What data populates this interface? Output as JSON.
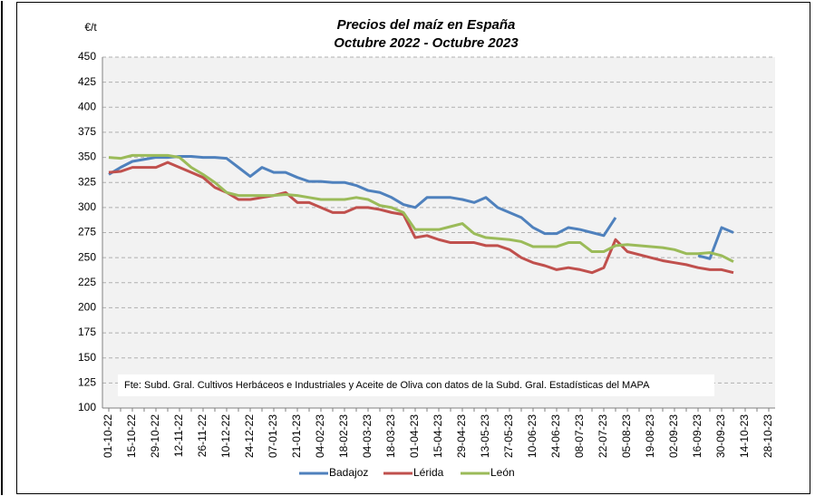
{
  "chart_data": {
    "type": "line",
    "title": "Precios del maíz en España",
    "subtitle": "Octubre 2022 - Octubre 2023",
    "y_label": "€/t",
    "annotation": "Fte: Subd. Gral. Cultivos Herbáceos e Industriales y Aceite de Oliva con datos de la Subd. Gral. Estadísticas del MAPA",
    "categories": [
      "01-10-22",
      null,
      "15-10-22",
      null,
      "29-10-22",
      null,
      "12-11-22",
      null,
      "26-11-22",
      null,
      "10-12-22",
      null,
      "24-12-22",
      null,
      "07-01-23",
      null,
      "21-01-23",
      null,
      "04-02-23",
      null,
      "18-02-23",
      null,
      "04-03-23",
      null,
      "18-03-23",
      null,
      "01-04-23",
      null,
      "15-04-23",
      null,
      "29-04-23",
      null,
      "13-05-23",
      null,
      "27-05-23",
      null,
      "10-06-23",
      null,
      "24-06-23",
      null,
      "08-07-23",
      null,
      "22-07-23",
      null,
      "05-08-23",
      null,
      "19-08-23",
      null,
      "02-09-23",
      null,
      "16-09-23",
      null,
      "30-09-23",
      null,
      "14-10-23",
      null,
      "28-10-23"
    ],
    "series": [
      {
        "name": "Badajoz",
        "color": "#4f81bd",
        "values": [
          333,
          340,
          346,
          348,
          350,
          350,
          351,
          351,
          350,
          350,
          349,
          340,
          331,
          340,
          335,
          335,
          330,
          326,
          326,
          325,
          325,
          322,
          317,
          315,
          310,
          303,
          300,
          310,
          310,
          310,
          308,
          305,
          310,
          300,
          295,
          290,
          280,
          274,
          274,
          280,
          278,
          275,
          272,
          290,
          null,
          null,
          null,
          null,
          null,
          null,
          252,
          249,
          280,
          275,
          null,
          null,
          null
        ]
      },
      {
        "name": "Lérida",
        "color": "#c0504d",
        "values": [
          335,
          336,
          340,
          340,
          340,
          345,
          340,
          335,
          330,
          320,
          315,
          308,
          308,
          310,
          312,
          315,
          305,
          305,
          300,
          295,
          295,
          300,
          300,
          298,
          295,
          293,
          270,
          272,
          268,
          265,
          265,
          265,
          262,
          262,
          258,
          250,
          245,
          242,
          238,
          240,
          238,
          235,
          240,
          268,
          256,
          253,
          250,
          247,
          245,
          243,
          240,
          238,
          238,
          235,
          null,
          null,
          null
        ]
      },
      {
        "name": "León",
        "color": "#9bbb59",
        "values": [
          350,
          349,
          352,
          352,
          352,
          352,
          350,
          340,
          333,
          325,
          315,
          312,
          312,
          312,
          312,
          313,
          312,
          310,
          308,
          308,
          308,
          310,
          308,
          302,
          300,
          295,
          278,
          278,
          278,
          281,
          284,
          274,
          270,
          269,
          268,
          266,
          261,
          261,
          261,
          265,
          265,
          256,
          256,
          262,
          263,
          262,
          261,
          260,
          258,
          254,
          254,
          255,
          252,
          246,
          null,
          null,
          null
        ]
      }
    ],
    "ylim": [
      100,
      450
    ],
    "yticks": [
      100,
      125,
      150,
      175,
      200,
      225,
      250,
      275,
      300,
      325,
      350,
      375,
      400,
      425,
      450
    ],
    "grid": true,
    "legend": "bottom"
  }
}
